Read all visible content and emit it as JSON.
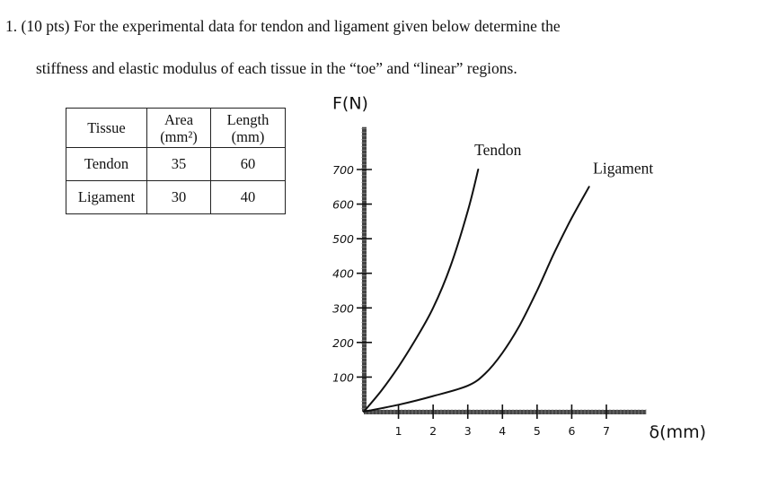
{
  "question": {
    "line1": "1.   (10 pts) For the experimental data for tendon and ligament given below determine the",
    "line2": "stiffness and elastic modulus of each tissue in the “toe” and “linear” regions."
  },
  "table": {
    "header": {
      "tissue": "Tissue",
      "area_l1": "Area",
      "area_l2": "(mm²)",
      "length_l1": "Length",
      "length_l2": "(mm)"
    },
    "rows": [
      {
        "tissue": "Tendon",
        "area": "35",
        "length": "60"
      },
      {
        "tissue": "Ligament",
        "area": "30",
        "length": "40"
      }
    ]
  },
  "chart_data": {
    "type": "line",
    "ylabel": "F(N)",
    "xlabel": "δ(mm)",
    "y_ticks": [
      "100",
      "200",
      "300",
      "400",
      "500",
      "600",
      "700"
    ],
    "x_ticks": [
      "1",
      "2",
      "3",
      "4",
      "5",
      "6",
      "7"
    ],
    "xlim": [
      0,
      7.5
    ],
    "ylim": [
      0,
      750
    ],
    "series": [
      {
        "name": "Tendon",
        "x": [
          0,
          0.5,
          1,
          1.5,
          2,
          2.5,
          3,
          3.3
        ],
        "y": [
          0,
          60,
          130,
          210,
          300,
          420,
          580,
          700
        ]
      },
      {
        "name": "Ligament",
        "x": [
          0,
          1,
          2,
          3,
          3.5,
          4,
          4.5,
          5,
          5.5,
          6,
          6.5
        ],
        "y": [
          0,
          20,
          45,
          75,
          110,
          170,
          250,
          350,
          460,
          560,
          650
        ]
      }
    ]
  }
}
